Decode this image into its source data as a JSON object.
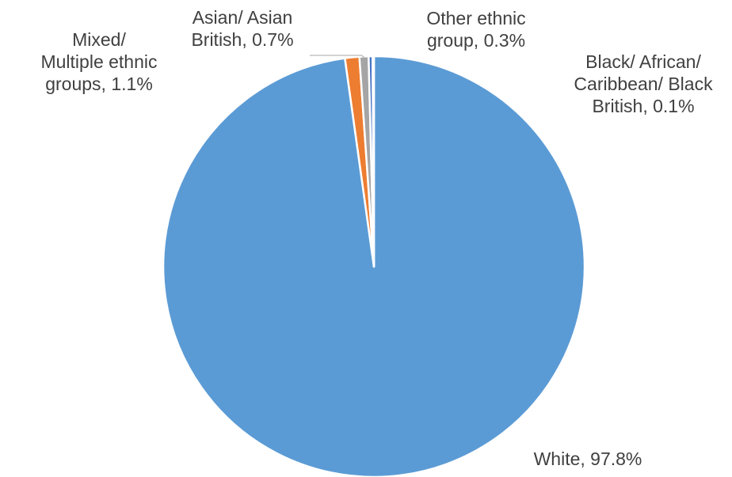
{
  "chart_data": {
    "type": "pie",
    "title": "",
    "slices": [
      {
        "label_lines": [
          "White, 97.8%"
        ],
        "value": 97.8,
        "color": "#5B9BD5"
      },
      {
        "label_lines": [
          "Mixed/",
          "Multiple ethnic",
          "groups, 1.1%"
        ],
        "value": 1.1,
        "color": "#ED7D31"
      },
      {
        "label_lines": [
          "Asian/ Asian",
          "British, 0.7%"
        ],
        "value": 0.7,
        "color": "#A5A5A5"
      },
      {
        "label_lines": [
          "Black/ African/",
          "Caribbean/ Black",
          "British, 0.1%"
        ],
        "value": 0.1,
        "color": "#FFC000"
      },
      {
        "label_lines": [
          "Other ethnic",
          "group, 0.3%"
        ],
        "value": 0.3,
        "color": "#4472C4"
      }
    ]
  }
}
